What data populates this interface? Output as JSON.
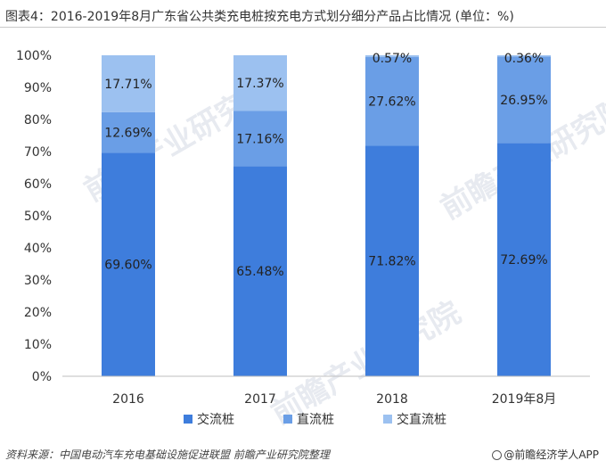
{
  "header": {
    "title": "图表4：2016-2019年8月广东省公共类充电桩按充电方式划分细分产品占比情况 (单位：%)"
  },
  "footer": {
    "source": "资料来源：中国电动汽车充电基础设施促进联盟 前瞻产业研究院整理",
    "brand": "@前瞻经济学人APP"
  },
  "watermark": {
    "text": "前瞻产业研究院"
  },
  "chart_data": {
    "type": "bar",
    "stacked": true,
    "categories": [
      "2016",
      "2017",
      "2018",
      "2019年8月"
    ],
    "series": [
      {
        "name": "交流桩",
        "values": [
          69.6,
          65.48,
          71.82,
          72.69
        ],
        "labels": [
          "69.60%",
          "65.48%",
          "71.82%",
          "72.69%"
        ],
        "color": "#3e7ddc"
      },
      {
        "name": "直流桩",
        "values": [
          12.69,
          17.16,
          27.62,
          26.95
        ],
        "labels": [
          "12.69%",
          "17.16%",
          "27.62%",
          "26.95%"
        ],
        "color": "#6a9ee6"
      },
      {
        "name": "交直流桩",
        "values": [
          17.71,
          17.37,
          0.57,
          0.36
        ],
        "labels": [
          "17.71%",
          "17.37%",
          "0.57%",
          "0.36%"
        ],
        "color": "#9cc1f0"
      }
    ],
    "ylim": [
      0,
      100
    ],
    "yticks": [
      "0%",
      "10%",
      "20%",
      "30%",
      "40%",
      "50%",
      "60%",
      "70%",
      "80%",
      "90%",
      "100%"
    ],
    "grid": false,
    "legend": "bottom"
  }
}
